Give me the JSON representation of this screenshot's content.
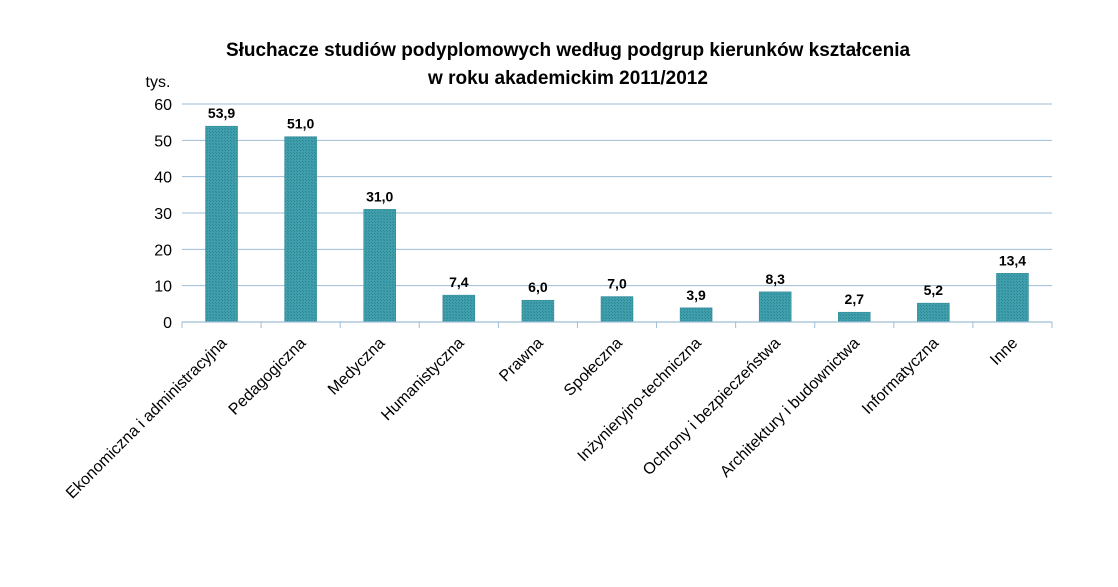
{
  "chart_data": {
    "type": "bar",
    "title_lines": [
      "Słuchacze studiów podyplomowych według podgrup kierunków kształcenia",
      "w roku akademickim 2011/2012"
    ],
    "y_unit": "tys.",
    "ylim": [
      0,
      60
    ],
    "yticks": [
      "0",
      "10",
      "20",
      "30",
      "40",
      "50",
      "60"
    ],
    "grid": true,
    "bar_color": "#3a9aa8",
    "categories": [
      "Ekonomiczna i administracyjna",
      "Pedagogiczna",
      "Medyczna",
      "Humanistyczna",
      "Prawna",
      "Społeczna",
      "Inżynieryjno-techniczna",
      "Ochrony i bezpieczeństwa",
      "Architektury i budownictwa",
      "Informatyczna",
      "Inne"
    ],
    "values": [
      53.9,
      51.0,
      31.0,
      7.4,
      6.0,
      7.0,
      3.9,
      8.3,
      2.7,
      5.2,
      13.4
    ],
    "value_labels": [
      "53,9",
      "51,0",
      "31,0",
      "7,4",
      "6,0",
      "7,0",
      "3,9",
      "8,3",
      "2,7",
      "5,2",
      "13,4"
    ]
  }
}
